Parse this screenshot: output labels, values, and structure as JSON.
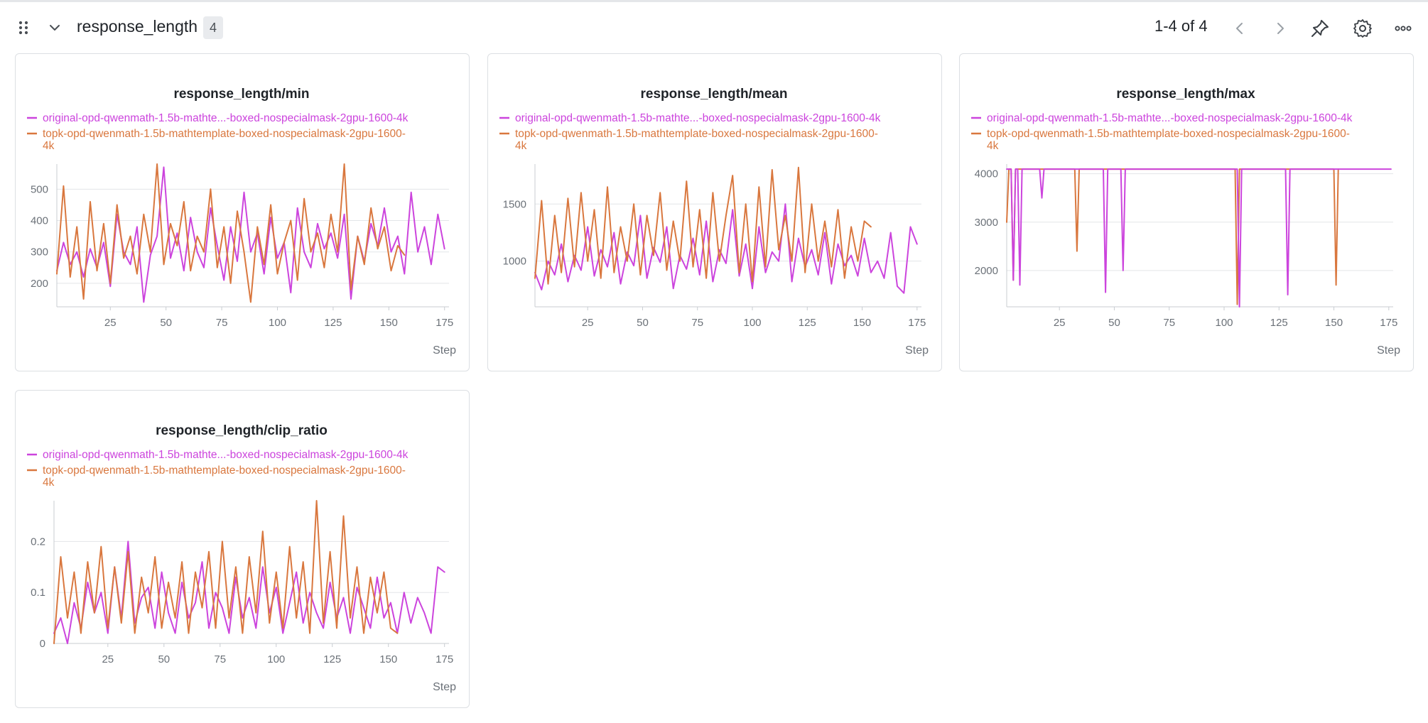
{
  "section": {
    "title": "response_length",
    "count": "4",
    "pagination": "1-4 of 4"
  },
  "icons": {
    "drag": "drag-handle-icon",
    "collapse": "chevron-down-icon",
    "prev": "chevron-left-icon",
    "next": "chevron-right-icon",
    "pin": "pin-icon",
    "settings": "gear-icon",
    "more": "more-horizontal-icon"
  },
  "colors": {
    "original": "#cc44dd",
    "topk": "#d9773e",
    "grid": "#e3e5e8",
    "axis": "#c9cdd2"
  },
  "legend": {
    "original": "original-opd-qwenmath-1.5b-mathte...-boxed-nospecialmask-2gpu-1600-4k",
    "topk_line1": "topk-opd-qwenmath-1.5b-mathtemplate-boxed-nospecialmask-2gpu-1600-",
    "topk_line2": "4k"
  },
  "panels": [
    {
      "title": "response_length/min"
    },
    {
      "title": "response_length/mean"
    },
    {
      "title": "response_length/max"
    },
    {
      "title": "response_length/clip_ratio"
    }
  ],
  "chart_data": [
    {
      "type": "line",
      "title": "response_length/min",
      "xlabel": "Step",
      "ylabel": "",
      "xlim": [
        1,
        177
      ],
      "ylim": [
        125,
        580
      ],
      "xticks": [
        25,
        50,
        75,
        100,
        125,
        150,
        175
      ],
      "yticks": [
        200,
        300,
        400,
        500
      ],
      "legend": "top-left",
      "grid": true,
      "series": [
        {
          "name": "original-opd-qwenmath-1.5b-mathte...-boxed-nospecialmask-2gpu-1600-4k",
          "x": [
            1,
            4,
            7,
            10,
            13,
            16,
            19,
            22,
            25,
            28,
            31,
            34,
            37,
            40,
            43,
            46,
            49,
            52,
            55,
            58,
            61,
            64,
            67,
            70,
            73,
            76,
            79,
            82,
            85,
            88,
            91,
            94,
            97,
            100,
            103,
            106,
            109,
            112,
            115,
            118,
            121,
            124,
            127,
            130,
            133,
            136,
            139,
            142,
            145,
            148,
            151,
            154,
            157,
            160,
            163,
            166,
            169,
            172,
            175
          ],
          "y": [
            240,
            330,
            260,
            300,
            220,
            310,
            250,
            330,
            190,
            420,
            300,
            260,
            380,
            140,
            290,
            350,
            570,
            280,
            360,
            240,
            410,
            300,
            250,
            440,
            320,
            210,
            380,
            270,
            490,
            300,
            360,
            230,
            410,
            280,
            330,
            170,
            440,
            300,
            250,
            390,
            310,
            360,
            280,
            420,
            150,
            350,
            270,
            390,
            320,
            440,
            300,
            350,
            230,
            490,
            300,
            380,
            260,
            420,
            310
          ]
        },
        {
          "name": "topk-opd-qwenmath-1.5b-mathtemplate-boxed-nospecialmask-2gpu-1600-4k",
          "x": [
            1,
            4,
            7,
            10,
            13,
            16,
            19,
            22,
            25,
            28,
            31,
            34,
            37,
            40,
            43,
            46,
            49,
            52,
            55,
            58,
            61,
            64,
            67,
            70,
            73,
            76,
            79,
            82,
            85,
            88,
            91,
            94,
            97,
            100,
            103,
            106,
            109,
            112,
            115,
            118,
            121,
            124,
            127,
            130,
            133,
            136,
            139,
            142,
            145,
            148,
            151,
            154,
            157
          ],
          "y": [
            230,
            510,
            220,
            380,
            150,
            460,
            240,
            390,
            200,
            450,
            280,
            350,
            230,
            420,
            300,
            580,
            260,
            390,
            320,
            460,
            240,
            350,
            300,
            500,
            250,
            380,
            200,
            430,
            300,
            140,
            380,
            260,
            450,
            230,
            330,
            400,
            210,
            470,
            300,
            360,
            250,
            420,
            300,
            580,
            180,
            350,
            260,
            440,
            310,
            380,
            240,
            320,
            290
          ]
        }
      ]
    },
    {
      "type": "line",
      "title": "response_length/mean",
      "xlabel": "Step",
      "ylabel": "",
      "xlim": [
        1,
        177
      ],
      "ylim": [
        600,
        1850
      ],
      "xticks": [
        25,
        50,
        75,
        100,
        125,
        150,
        175
      ],
      "yticks": [
        1000,
        1500
      ],
      "legend": "top-left",
      "grid": true,
      "series": [
        {
          "name": "original-opd-qwenmath-1.5b-mathte...-boxed-nospecialmask-2gpu-1600-4k",
          "x": [
            1,
            4,
            7,
            10,
            13,
            16,
            19,
            22,
            25,
            28,
            31,
            34,
            37,
            40,
            43,
            46,
            49,
            52,
            55,
            58,
            61,
            64,
            67,
            70,
            73,
            76,
            79,
            82,
            85,
            88,
            91,
            94,
            97,
            100,
            103,
            106,
            109,
            112,
            115,
            118,
            121,
            124,
            127,
            130,
            133,
            136,
            139,
            142,
            145,
            148,
            151,
            154,
            157,
            160,
            163,
            166,
            169,
            172,
            175
          ],
          "y": [
            900,
            750,
            1000,
            880,
            1150,
            820,
            1050,
            920,
            1300,
            870,
            1100,
            950,
            1250,
            800,
            1080,
            960,
            1400,
            850,
            1120,
            990,
            1300,
            760,
            1050,
            930,
            1200,
            880,
            1350,
            820,
            1100,
            980,
            1450,
            870,
            1150,
            760,
            1300,
            900,
            1080,
            1000,
            1500,
            820,
            1200,
            950,
            1100,
            880,
            1250,
            800,
            1150,
            960,
            1050,
            870,
            1200,
            900,
            1000,
            850,
            1250,
            780,
            720,
            1300,
            1150
          ]
        },
        {
          "name": "topk-opd-qwenmath-1.5b-mathtemplate-boxed-nospecialmask-2gpu-1600-4k",
          "x": [
            1,
            4,
            7,
            10,
            13,
            16,
            19,
            22,
            25,
            28,
            31,
            34,
            37,
            40,
            43,
            46,
            49,
            52,
            55,
            58,
            61,
            64,
            67,
            70,
            73,
            76,
            79,
            82,
            85,
            88,
            91,
            94,
            97,
            100,
            103,
            106,
            109,
            112,
            115,
            118,
            121,
            124,
            127,
            130,
            133,
            136,
            139,
            142,
            145,
            148,
            151,
            154
          ],
          "y": [
            850,
            1530,
            800,
            1400,
            900,
            1550,
            950,
            1600,
            1000,
            1450,
            850,
            1650,
            900,
            1300,
            1000,
            1500,
            880,
            1400,
            1050,
            1600,
            920,
            1350,
            1000,
            1700,
            950,
            1450,
            850,
            1600,
            1000,
            1400,
            1750,
            900,
            1500,
            820,
            1650,
            950,
            1800,
            1100,
            1400,
            1000,
            1820,
            900,
            1500,
            1000,
            1350,
            950,
            1450,
            850,
            1300,
            1000,
            1350,
            1300
          ]
        }
      ]
    },
    {
      "type": "line",
      "title": "response_length/max",
      "xlabel": "Step",
      "ylabel": "",
      "xlim": [
        1,
        177
      ],
      "ylim": [
        1250,
        4200
      ],
      "xticks": [
        25,
        50,
        75,
        100,
        125,
        150,
        175
      ],
      "yticks": [
        2000,
        3000,
        4000
      ],
      "legend": "top-left",
      "grid": true,
      "series": [
        {
          "name": "original-opd-qwenmath-1.5b-mathte...-boxed-nospecialmask-2gpu-1600-4k",
          "x": [
            1,
            3,
            4,
            5,
            6,
            7,
            8,
            16,
            17,
            18,
            45,
            46,
            47,
            53,
            54,
            55,
            106,
            107,
            108,
            128,
            129,
            130,
            176
          ],
          "y": [
            4096,
            4096,
            1800,
            4096,
            4096,
            1700,
            4096,
            4096,
            3500,
            4096,
            4096,
            1550,
            4096,
            4096,
            2000,
            4096,
            4096,
            1250,
            4096,
            4096,
            1500,
            4096,
            4096
          ]
        },
        {
          "name": "topk-opd-qwenmath-1.5b-mathtemplate-boxed-nospecialmask-2gpu-1600-4k",
          "x": [
            1,
            2,
            3,
            4,
            5,
            32,
            33,
            34,
            105,
            106,
            107,
            150,
            151,
            152
          ],
          "y": [
            3000,
            4096,
            4096,
            1800,
            4096,
            4096,
            2400,
            4096,
            4096,
            1300,
            4096,
            4096,
            1700,
            4096
          ]
        }
      ]
    },
    {
      "type": "line",
      "title": "response_length/clip_ratio",
      "xlabel": "Step",
      "ylabel": "",
      "xlim": [
        1,
        177
      ],
      "ylim": [
        0,
        0.28
      ],
      "xticks": [
        25,
        50,
        75,
        100,
        125,
        150,
        175
      ],
      "yticks": [
        0,
        0.1,
        0.2
      ],
      "legend": "top-left",
      "grid": true,
      "series": [
        {
          "name": "original-opd-qwenmath-1.5b-mathte...-boxed-nospecialmask-2gpu-1600-4k",
          "x": [
            1,
            4,
            7,
            10,
            13,
            16,
            19,
            22,
            25,
            28,
            31,
            34,
            37,
            40,
            43,
            46,
            49,
            52,
            55,
            58,
            61,
            64,
            67,
            70,
            73,
            76,
            79,
            82,
            85,
            88,
            91,
            94,
            97,
            100,
            103,
            106,
            109,
            112,
            115,
            118,
            121,
            124,
            127,
            130,
            133,
            136,
            139,
            142,
            145,
            148,
            151,
            154,
            157,
            160,
            163,
            166,
            169,
            172,
            175
          ],
          "y": [
            0.02,
            0.05,
            0.0,
            0.08,
            0.03,
            0.12,
            0.06,
            0.1,
            0.02,
            0.15,
            0.05,
            0.2,
            0.04,
            0.09,
            0.11,
            0.03,
            0.14,
            0.06,
            0.02,
            0.12,
            0.05,
            0.08,
            0.16,
            0.03,
            0.1,
            0.07,
            0.02,
            0.13,
            0.05,
            0.09,
            0.03,
            0.15,
            0.06,
            0.11,
            0.02,
            0.08,
            0.14,
            0.04,
            0.1,
            0.06,
            0.03,
            0.12,
            0.05,
            0.09,
            0.02,
            0.11,
            0.07,
            0.03,
            0.13,
            0.05,
            0.08,
            0.02,
            0.1,
            0.04,
            0.09,
            0.06,
            0.02,
            0.15,
            0.14
          ]
        },
        {
          "name": "topk-opd-qwenmath-1.5b-mathtemplate-boxed-nospecialmask-2gpu-1600-4k",
          "x": [
            1,
            4,
            7,
            10,
            13,
            16,
            19,
            22,
            25,
            28,
            31,
            34,
            37,
            40,
            43,
            46,
            49,
            52,
            55,
            58,
            61,
            64,
            67,
            70,
            73,
            76,
            79,
            82,
            85,
            88,
            91,
            94,
            97,
            100,
            103,
            106,
            109,
            112,
            115,
            118,
            121,
            124,
            127,
            130,
            133,
            136,
            139,
            142,
            145,
            148,
            151,
            154
          ],
          "y": [
            0.0,
            0.17,
            0.05,
            0.14,
            0.02,
            0.16,
            0.06,
            0.19,
            0.03,
            0.15,
            0.04,
            0.18,
            0.02,
            0.13,
            0.06,
            0.17,
            0.03,
            0.12,
            0.05,
            0.16,
            0.02,
            0.14,
            0.07,
            0.18,
            0.03,
            0.2,
            0.05,
            0.15,
            0.02,
            0.17,
            0.06,
            0.22,
            0.04,
            0.14,
            0.03,
            0.19,
            0.05,
            0.16,
            0.02,
            0.28,
            0.04,
            0.18,
            0.03,
            0.25,
            0.05,
            0.15,
            0.02,
            0.13,
            0.06,
            0.14,
            0.03,
            0.02
          ]
        }
      ]
    }
  ]
}
